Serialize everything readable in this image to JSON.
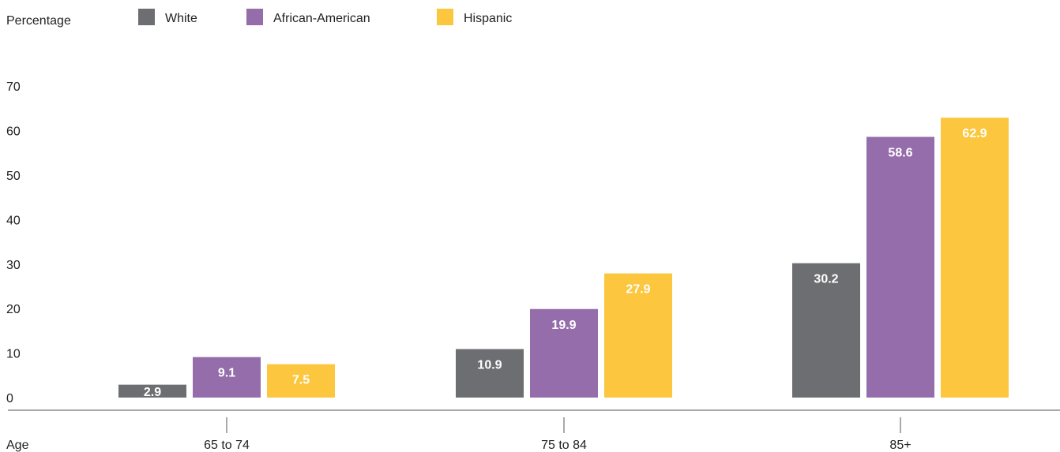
{
  "chart_data": {
    "type": "bar",
    "ylabel": "Percentage",
    "xlabel": "Age",
    "categories": [
      "65 to 74",
      "75 to 84",
      "85+"
    ],
    "series": [
      {
        "name": "White",
        "values": [
          2.9,
          10.9,
          30.2
        ],
        "color": "#6d6e71"
      },
      {
        "name": "African-American",
        "values": [
          9.1,
          19.9,
          58.6
        ],
        "color": "#946daa"
      },
      {
        "name": "Hispanic",
        "values": [
          7.5,
          27.9,
          62.9
        ],
        "color": "#fcc63f"
      }
    ],
    "yticks": [
      0,
      10,
      20,
      30,
      40,
      50,
      60,
      70
    ],
    "ylim": [
      0,
      70
    ],
    "grid": false,
    "legend_position": "top-left"
  }
}
